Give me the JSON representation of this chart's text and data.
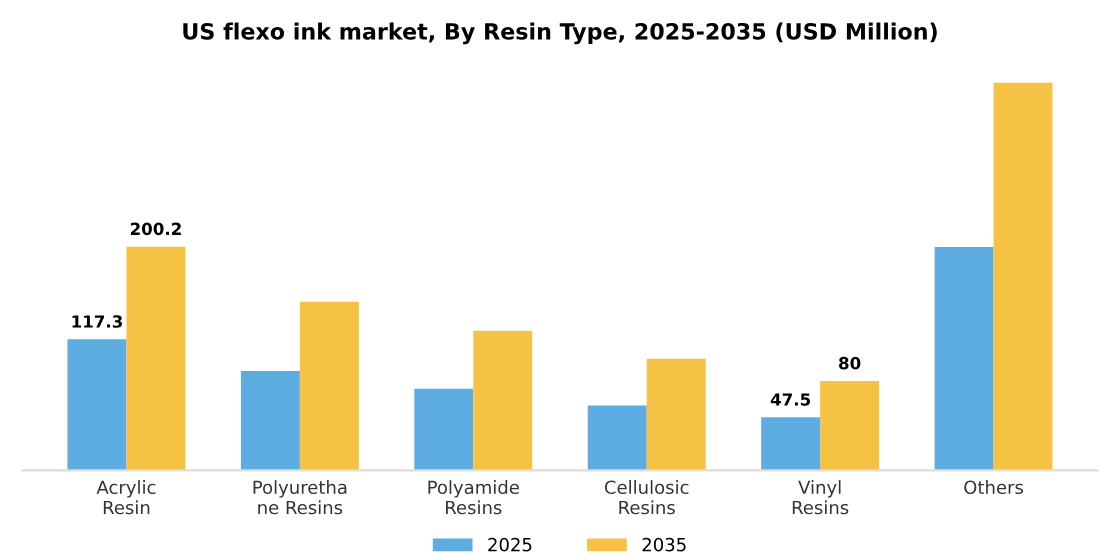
{
  "chart_data": {
    "type": "bar",
    "title": "US flexo ink market, By Resin Type, 2025-2035 (USD Million)",
    "categories": [
      "Acrylic\nResin",
      "Polyuretha\nne Resins",
      "Polyamide\nResins",
      "Cellulosic\nResins",
      "Vinyl\nResins",
      "Others"
    ],
    "series": [
      {
        "name": "2025",
        "color": "#5dade2",
        "values": [
          117.3,
          89,
          73,
          58,
          47.5,
          200
        ],
        "value_labels": [
          "117.3",
          null,
          null,
          null,
          "47.5",
          null
        ]
      },
      {
        "name": "2035",
        "color": "#f6c244",
        "values": [
          200.2,
          151,
          125,
          100,
          80,
          347
        ],
        "value_labels": [
          "200.2",
          null,
          null,
          null,
          "80",
          null
        ]
      }
    ],
    "tick_labels": "x",
    "grid": false,
    "legend": "bottom"
  }
}
